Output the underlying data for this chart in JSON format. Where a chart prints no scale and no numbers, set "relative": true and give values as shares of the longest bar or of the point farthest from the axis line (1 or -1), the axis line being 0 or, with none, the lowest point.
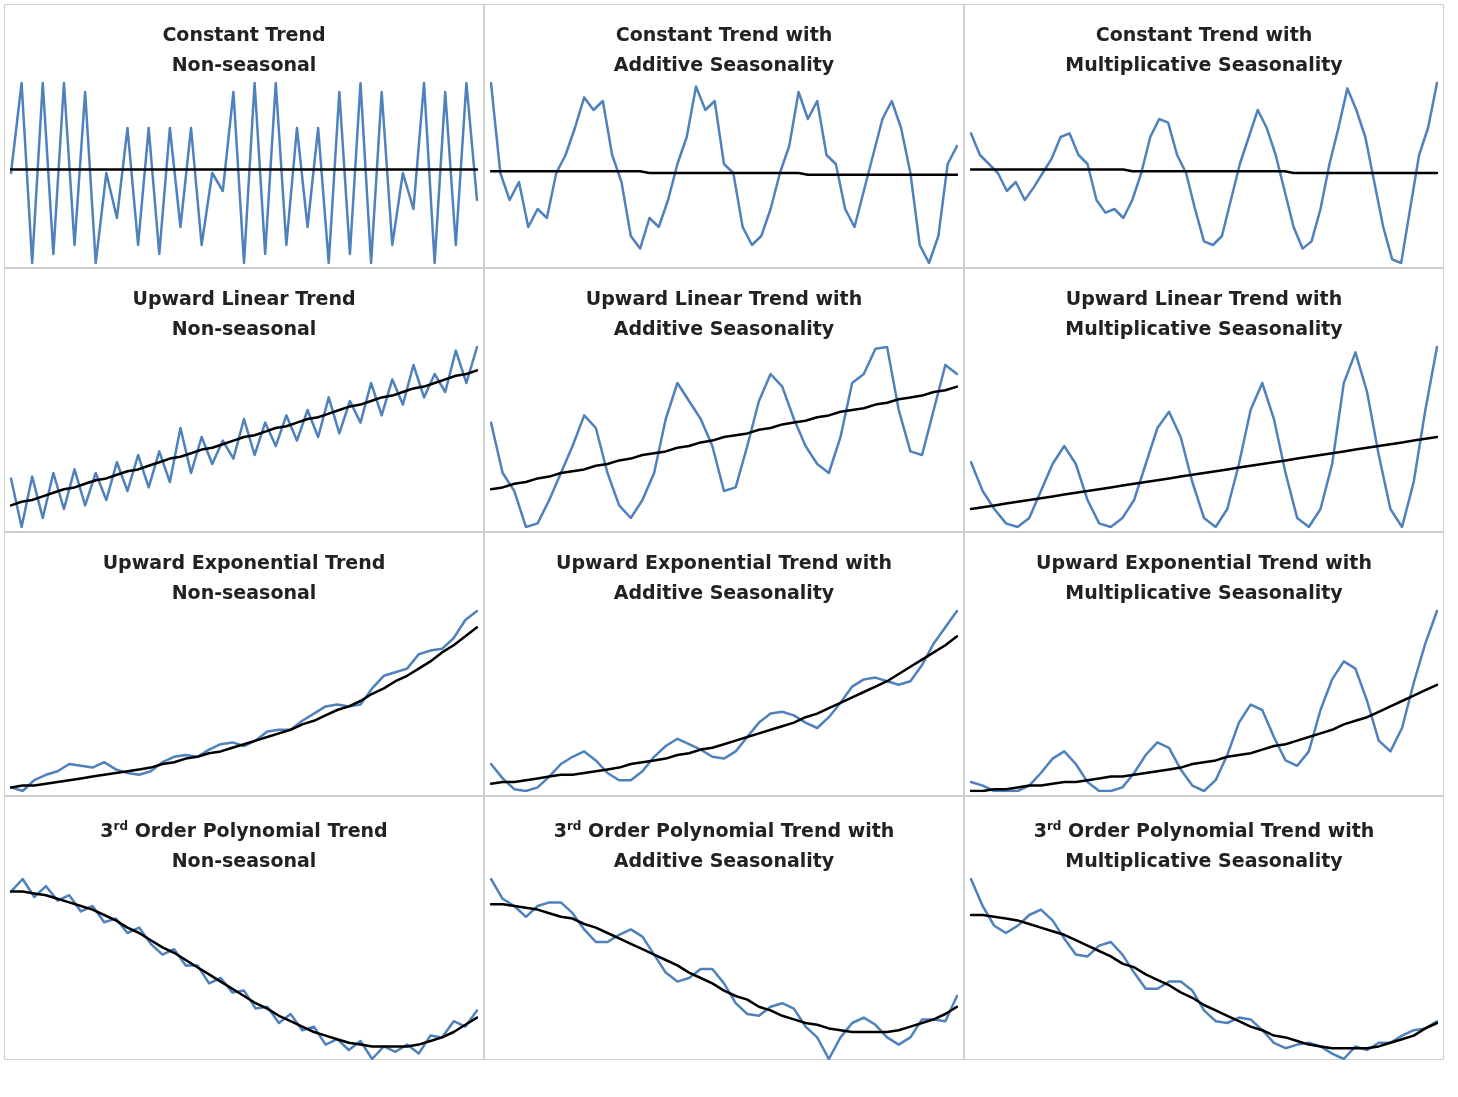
{
  "chart_data": [
    {
      "type": "line",
      "title": "Constant Trend",
      "subtitle": "Non-seasonal",
      "relative": true,
      "categories": [
        null,
        null,
        null,
        null,
        null,
        null,
        null,
        null,
        null,
        null,
        null,
        null,
        null,
        null,
        null,
        null,
        null,
        null,
        null,
        null,
        null,
        null,
        null,
        null,
        null,
        null,
        null,
        null,
        null,
        null,
        null,
        null,
        null,
        null,
        null,
        null,
        null,
        null,
        null,
        null,
        null,
        null,
        null,
        null,
        null
      ],
      "series": [
        {
          "color": "#4f81bd",
          "values": [
            0.5,
            1,
            0,
            1,
            0.05,
            1,
            0.1,
            0.95,
            0,
            0.5,
            0.25,
            0.75,
            0.1,
            0.75,
            0.05,
            0.75,
            0.2,
            0.75,
            0.1,
            0.5,
            0.4,
            0.95,
            0,
            1,
            0.05,
            1,
            0.1,
            0.75,
            0.2,
            0.75,
            0,
            0.95,
            0.05,
            1,
            0,
            0.95,
            0.1,
            0.5,
            0.3,
            1,
            0,
            0.95,
            0.1,
            1,
            0.35
          ]
        },
        {
          "color": "#000000",
          "values": [
            0.52,
            0.52,
            0.52,
            0.52,
            0.52,
            0.52,
            0.52,
            0.52,
            0.52,
            0.52,
            0.52,
            0.52,
            0.52,
            0.52,
            0.52,
            0.52,
            0.52,
            0.52,
            0.52,
            0.52,
            0.52,
            0.52,
            0.52,
            0.52,
            0.52,
            0.52,
            0.52,
            0.52,
            0.52,
            0.52,
            0.52,
            0.52,
            0.52,
            0.52,
            0.52,
            0.52,
            0.52,
            0.52,
            0.52,
            0.52,
            0.52,
            0.52,
            0.52,
            0.52,
            0.52
          ]
        }
      ]
    },
    {
      "type": "line",
      "title": "Constant Trend with",
      "subtitle": "Additive Seasonality",
      "relative": true,
      "categories": [
        null,
        null,
        null,
        null,
        null,
        null,
        null,
        null,
        null,
        null,
        null,
        null,
        null,
        null,
        null,
        null,
        null,
        null,
        null,
        null,
        null,
        null,
        null,
        null,
        null,
        null,
        null,
        null,
        null,
        null,
        null,
        null,
        null,
        null,
        null,
        null,
        null,
        null,
        null,
        null,
        null,
        null,
        null,
        null,
        null,
        null,
        null,
        null,
        null,
        null,
        null
      ],
      "series": [
        {
          "color": "#4f81bd",
          "values": [
            1.0,
            0.5,
            0.35,
            0.45,
            0.2,
            0.3,
            0.25,
            0.5,
            0.6,
            0.75,
            0.92,
            0.85,
            0.9,
            0.6,
            0.45,
            0.15,
            0.08,
            0.25,
            0.2,
            0.35,
            0.55,
            0.7,
            0.98,
            0.85,
            0.9,
            0.55,
            0.5,
            0.2,
            0.1,
            0.15,
            0.3,
            0.5,
            0.65,
            0.95,
            0.8,
            0.9,
            0.6,
            0.55,
            0.3,
            0.2,
            0.4,
            0.6,
            0.8,
            0.9,
            0.75,
            0.5,
            0.1,
            0.0,
            0.15,
            0.55,
            0.65
          ]
        },
        {
          "color": "#000000",
          "values": [
            0.51,
            0.51,
            0.51,
            0.51,
            0.51,
            0.51,
            0.51,
            0.51,
            0.51,
            0.51,
            0.51,
            0.51,
            0.51,
            0.51,
            0.51,
            0.51,
            0.51,
            0.5,
            0.5,
            0.5,
            0.5,
            0.5,
            0.5,
            0.5,
            0.5,
            0.5,
            0.5,
            0.5,
            0.5,
            0.5,
            0.5,
            0.5,
            0.5,
            0.5,
            0.49,
            0.49,
            0.49,
            0.49,
            0.49,
            0.49,
            0.49,
            0.49,
            0.49,
            0.49,
            0.49,
            0.49,
            0.49,
            0.49,
            0.49,
            0.49,
            0.49
          ]
        }
      ]
    },
    {
      "type": "line",
      "title": "Constant Trend with",
      "subtitle": "Multiplicative Seasonality",
      "relative": true,
      "categories": [
        null,
        null,
        null,
        null,
        null,
        null,
        null,
        null,
        null,
        null,
        null,
        null,
        null,
        null,
        null,
        null,
        null,
        null,
        null,
        null,
        null,
        null,
        null,
        null,
        null,
        null,
        null,
        null,
        null,
        null,
        null,
        null,
        null,
        null,
        null,
        null,
        null,
        null,
        null,
        null,
        null,
        null,
        null,
        null,
        null,
        null,
        null,
        null,
        null,
        null,
        null,
        null,
        null
      ],
      "series": [
        {
          "color": "#4f81bd",
          "values": [
            0.72,
            0.6,
            0.55,
            0.5,
            0.4,
            0.45,
            0.35,
            0.42,
            0.5,
            0.58,
            0.7,
            0.72,
            0.6,
            0.55,
            0.35,
            0.28,
            0.3,
            0.25,
            0.35,
            0.5,
            0.7,
            0.8,
            0.78,
            0.6,
            0.5,
            0.3,
            0.12,
            0.1,
            0.15,
            0.35,
            0.55,
            0.7,
            0.85,
            0.75,
            0.6,
            0.4,
            0.2,
            0.08,
            0.12,
            0.3,
            0.55,
            0.75,
            0.97,
            0.85,
            0.7,
            0.45,
            0.2,
            0.02,
            0.0,
            0.3,
            0.6,
            0.75,
            1.0
          ]
        },
        {
          "color": "#000000",
          "values": [
            0.52,
            0.52,
            0.52,
            0.52,
            0.52,
            0.52,
            0.52,
            0.52,
            0.52,
            0.52,
            0.52,
            0.52,
            0.52,
            0.52,
            0.52,
            0.52,
            0.52,
            0.52,
            0.51,
            0.51,
            0.51,
            0.51,
            0.51,
            0.51,
            0.51,
            0.51,
            0.51,
            0.51,
            0.51,
            0.51,
            0.51,
            0.51,
            0.51,
            0.51,
            0.51,
            0.51,
            0.5,
            0.5,
            0.5,
            0.5,
            0.5,
            0.5,
            0.5,
            0.5,
            0.5,
            0.5,
            0.5,
            0.5,
            0.5,
            0.5,
            0.5,
            0.5,
            0.5
          ]
        }
      ]
    },
    {
      "type": "line",
      "title": "Upward Linear Trend",
      "subtitle": "Non-seasonal",
      "relative": true,
      "categories": [
        null,
        null,
        null,
        null,
        null,
        null,
        null,
        null,
        null,
        null,
        null,
        null,
        null,
        null,
        null,
        null,
        null,
        null,
        null,
        null,
        null,
        null,
        null,
        null,
        null,
        null,
        null,
        null,
        null,
        null,
        null,
        null,
        null,
        null,
        null,
        null,
        null,
        null,
        null,
        null,
        null,
        null,
        null,
        null,
        null
      ],
      "series": [
        {
          "color": "#4f81bd",
          "values": [
            0.27,
            0.0,
            0.28,
            0.05,
            0.3,
            0.1,
            0.32,
            0.12,
            0.3,
            0.15,
            0.36,
            0.2,
            0.4,
            0.22,
            0.42,
            0.25,
            0.55,
            0.3,
            0.5,
            0.35,
            0.48,
            0.38,
            0.6,
            0.4,
            0.58,
            0.45,
            0.62,
            0.48,
            0.65,
            0.5,
            0.72,
            0.52,
            0.7,
            0.58,
            0.8,
            0.62,
            0.82,
            0.68,
            0.9,
            0.72,
            0.85,
            0.75,
            0.98,
            0.8,
            1.0
          ]
        },
        {
          "color": "#000000",
          "values": [
            0.12,
            0.14,
            0.15,
            0.17,
            0.19,
            0.21,
            0.22,
            0.24,
            0.26,
            0.27,
            0.29,
            0.31,
            0.32,
            0.34,
            0.36,
            0.38,
            0.39,
            0.41,
            0.43,
            0.44,
            0.46,
            0.48,
            0.5,
            0.51,
            0.53,
            0.55,
            0.56,
            0.58,
            0.6,
            0.61,
            0.63,
            0.65,
            0.67,
            0.68,
            0.7,
            0.72,
            0.73,
            0.75,
            0.77,
            0.78,
            0.8,
            0.82,
            0.84,
            0.85,
            0.87
          ]
        }
      ]
    },
    {
      "type": "line",
      "title": "Upward Linear Trend with",
      "subtitle": "Additive Seasonality",
      "relative": true,
      "categories": [
        null,
        null,
        null,
        null,
        null,
        null,
        null,
        null,
        null,
        null,
        null,
        null,
        null,
        null,
        null,
        null,
        null,
        null,
        null,
        null,
        null,
        null,
        null,
        null,
        null,
        null,
        null,
        null,
        null,
        null,
        null,
        null,
        null,
        null,
        null,
        null,
        null,
        null,
        null,
        null,
        null
      ],
      "series": [
        {
          "color": "#4f81bd",
          "values": [
            0.58,
            0.3,
            0.2,
            0.0,
            0.02,
            0.15,
            0.3,
            0.45,
            0.62,
            0.55,
            0.3,
            0.12,
            0.05,
            0.15,
            0.3,
            0.6,
            0.8,
            0.7,
            0.6,
            0.45,
            0.2,
            0.22,
            0.45,
            0.7,
            0.85,
            0.78,
            0.6,
            0.45,
            0.35,
            0.3,
            0.5,
            0.8,
            0.85,
            0.99,
            1.0,
            0.65,
            0.42,
            0.4,
            0.65,
            0.9,
            0.85
          ]
        },
        {
          "color": "#000000",
          "values": [
            0.21,
            0.22,
            0.24,
            0.25,
            0.27,
            0.28,
            0.3,
            0.31,
            0.32,
            0.34,
            0.35,
            0.37,
            0.38,
            0.4,
            0.41,
            0.42,
            0.44,
            0.45,
            0.47,
            0.48,
            0.5,
            0.51,
            0.52,
            0.54,
            0.55,
            0.57,
            0.58,
            0.59,
            0.61,
            0.62,
            0.64,
            0.65,
            0.66,
            0.68,
            0.69,
            0.71,
            0.72,
            0.73,
            0.75,
            0.76,
            0.78
          ]
        }
      ]
    },
    {
      "type": "line",
      "title": "Upward Linear Trend with",
      "subtitle": "Multiplicative Seasonality",
      "relative": true,
      "categories": [
        null,
        null,
        null,
        null,
        null,
        null,
        null,
        null,
        null,
        null,
        null,
        null,
        null,
        null,
        null,
        null,
        null,
        null,
        null,
        null,
        null,
        null,
        null,
        null,
        null,
        null,
        null,
        null,
        null,
        null,
        null,
        null,
        null,
        null,
        null,
        null,
        null,
        null,
        null,
        null,
        null
      ],
      "series": [
        {
          "color": "#4f81bd",
          "values": [
            0.36,
            0.2,
            0.1,
            0.02,
            0.0,
            0.05,
            0.2,
            0.35,
            0.45,
            0.35,
            0.15,
            0.02,
            0.0,
            0.05,
            0.15,
            0.35,
            0.55,
            0.64,
            0.5,
            0.25,
            0.05,
            0.0,
            0.1,
            0.35,
            0.65,
            0.8,
            0.6,
            0.3,
            0.05,
            0.0,
            0.1,
            0.35,
            0.8,
            0.97,
            0.75,
            0.4,
            0.1,
            0.0,
            0.25,
            0.65,
            1.0
          ]
        },
        {
          "color": "#000000",
          "values": [
            0.1,
            0.11,
            0.12,
            0.13,
            0.14,
            0.15,
            0.16,
            0.17,
            0.18,
            0.19,
            0.2,
            0.21,
            0.22,
            0.23,
            0.24,
            0.25,
            0.26,
            0.27,
            0.28,
            0.29,
            0.3,
            0.31,
            0.32,
            0.33,
            0.34,
            0.35,
            0.36,
            0.37,
            0.38,
            0.39,
            0.4,
            0.41,
            0.42,
            0.43,
            0.44,
            0.45,
            0.46,
            0.47,
            0.48,
            0.49,
            0.5
          ]
        }
      ]
    },
    {
      "type": "line",
      "title": "Upward Exponential Trend",
      "subtitle": "Non-seasonal",
      "relative": true,
      "categories": [
        null,
        null,
        null,
        null,
        null,
        null,
        null,
        null,
        null,
        null,
        null,
        null,
        null,
        null,
        null,
        null,
        null,
        null,
        null,
        null,
        null,
        null,
        null,
        null,
        null,
        null,
        null,
        null,
        null,
        null,
        null,
        null,
        null,
        null,
        null,
        null,
        null,
        null,
        null,
        null,
        null
      ],
      "series": [
        {
          "color": "#4f81bd",
          "values": [
            0.02,
            0.0,
            0.06,
            0.09,
            0.11,
            0.15,
            0.14,
            0.13,
            0.16,
            0.12,
            0.1,
            0.09,
            0.11,
            0.16,
            0.19,
            0.2,
            0.19,
            0.23,
            0.26,
            0.27,
            0.25,
            0.28,
            0.33,
            0.34,
            0.34,
            0.39,
            0.43,
            0.47,
            0.48,
            0.47,
            0.48,
            0.57,
            0.64,
            0.66,
            0.68,
            0.76,
            0.78,
            0.79,
            0.85,
            0.95,
            1.0
          ]
        },
        {
          "color": "#000000",
          "values": [
            0.02,
            0.03,
            0.03,
            0.04,
            0.05,
            0.06,
            0.07,
            0.08,
            0.09,
            0.1,
            0.11,
            0.12,
            0.13,
            0.15,
            0.16,
            0.18,
            0.19,
            0.21,
            0.22,
            0.24,
            0.26,
            0.28,
            0.3,
            0.32,
            0.34,
            0.37,
            0.39,
            0.42,
            0.45,
            0.47,
            0.5,
            0.54,
            0.57,
            0.61,
            0.64,
            0.68,
            0.72,
            0.77,
            0.81,
            0.86,
            0.91
          ]
        }
      ]
    },
    {
      "type": "line",
      "title": "Upward Exponential Trend with",
      "subtitle": "Additive Seasonality",
      "relative": true,
      "categories": [
        null,
        null,
        null,
        null,
        null,
        null,
        null,
        null,
        null,
        null,
        null,
        null,
        null,
        null,
        null,
        null,
        null,
        null,
        null,
        null,
        null,
        null,
        null,
        null,
        null,
        null,
        null,
        null,
        null,
        null,
        null,
        null,
        null,
        null,
        null,
        null,
        null,
        null,
        null,
        null,
        null
      ],
      "series": [
        {
          "color": "#4f81bd",
          "values": [
            0.15,
            0.07,
            0.01,
            0.0,
            0.02,
            0.08,
            0.15,
            0.19,
            0.22,
            0.17,
            0.1,
            0.06,
            0.06,
            0.11,
            0.19,
            0.25,
            0.29,
            0.26,
            0.23,
            0.19,
            0.18,
            0.22,
            0.3,
            0.38,
            0.43,
            0.44,
            0.42,
            0.38,
            0.35,
            0.41,
            0.49,
            0.58,
            0.62,
            0.63,
            0.61,
            0.59,
            0.61,
            0.7,
            0.82,
            0.91,
            1.0
          ]
        },
        {
          "color": "#000000",
          "values": [
            0.04,
            0.05,
            0.05,
            0.06,
            0.07,
            0.08,
            0.09,
            0.09,
            0.1,
            0.11,
            0.12,
            0.13,
            0.15,
            0.16,
            0.17,
            0.18,
            0.2,
            0.21,
            0.23,
            0.24,
            0.26,
            0.28,
            0.3,
            0.32,
            0.34,
            0.36,
            0.38,
            0.41,
            0.43,
            0.46,
            0.49,
            0.52,
            0.55,
            0.58,
            0.61,
            0.65,
            0.69,
            0.73,
            0.77,
            0.81,
            0.86
          ]
        }
      ]
    },
    {
      "type": "line",
      "title": "Upward Exponential Trend with",
      "subtitle": "Multiplicative Seasonality",
      "relative": true,
      "categories": [
        null,
        null,
        null,
        null,
        null,
        null,
        null,
        null,
        null,
        null,
        null,
        null,
        null,
        null,
        null,
        null,
        null,
        null,
        null,
        null,
        null,
        null,
        null,
        null,
        null,
        null,
        null,
        null,
        null,
        null,
        null,
        null,
        null,
        null,
        null,
        null,
        null,
        null,
        null,
        null,
        null
      ],
      "series": [
        {
          "color": "#4f81bd",
          "values": [
            0.05,
            0.03,
            0.0,
            0.0,
            0.0,
            0.03,
            0.1,
            0.18,
            0.22,
            0.15,
            0.05,
            0.0,
            0.0,
            0.02,
            0.1,
            0.2,
            0.27,
            0.24,
            0.12,
            0.03,
            0.0,
            0.06,
            0.2,
            0.38,
            0.48,
            0.45,
            0.3,
            0.17,
            0.14,
            0.22,
            0.45,
            0.62,
            0.72,
            0.68,
            0.5,
            0.28,
            0.22,
            0.35,
            0.6,
            0.82,
            1.0
          ]
        },
        {
          "color": "#000000",
          "values": [
            0.0,
            0.0,
            0.01,
            0.01,
            0.02,
            0.03,
            0.03,
            0.04,
            0.05,
            0.05,
            0.06,
            0.07,
            0.08,
            0.08,
            0.09,
            0.1,
            0.11,
            0.12,
            0.13,
            0.15,
            0.16,
            0.17,
            0.19,
            0.2,
            0.21,
            0.23,
            0.25,
            0.26,
            0.28,
            0.3,
            0.32,
            0.34,
            0.37,
            0.39,
            0.41,
            0.44,
            0.47,
            0.5,
            0.53,
            0.56,
            0.59
          ]
        }
      ]
    },
    {
      "type": "line",
      "title": "3$^{rd}$ Order Polynomial Trend",
      "subtitle": "Non-seasonal",
      "relative": true,
      "categories": [
        null,
        null,
        null,
        null,
        null,
        null,
        null,
        null,
        null,
        null,
        null,
        null,
        null,
        null,
        null,
        null,
        null,
        null,
        null,
        null,
        null,
        null,
        null,
        null,
        null,
        null,
        null,
        null,
        null,
        null,
        null,
        null,
        null,
        null,
        null,
        null,
        null,
        null,
        null,
        null,
        null
      ],
      "series": [
        {
          "color": "#4f81bd",
          "values": [
            0.93,
            1.0,
            0.9,
            0.96,
            0.88,
            0.91,
            0.82,
            0.85,
            0.76,
            0.78,
            0.7,
            0.73,
            0.64,
            0.58,
            0.61,
            0.52,
            0.52,
            0.42,
            0.45,
            0.37,
            0.38,
            0.28,
            0.29,
            0.2,
            0.25,
            0.16,
            0.18,
            0.08,
            0.11,
            0.05,
            0.1,
            0.0,
            0.07,
            0.04,
            0.08,
            0.03,
            0.13,
            0.12,
            0.21,
            0.18,
            0.27
          ]
        },
        {
          "color": "#000000",
          "values": [
            0.93,
            0.93,
            0.92,
            0.91,
            0.89,
            0.87,
            0.85,
            0.83,
            0.8,
            0.77,
            0.73,
            0.7,
            0.66,
            0.62,
            0.59,
            0.55,
            0.51,
            0.47,
            0.43,
            0.39,
            0.35,
            0.31,
            0.28,
            0.24,
            0.21,
            0.18,
            0.15,
            0.13,
            0.11,
            0.09,
            0.08,
            0.07,
            0.07,
            0.07,
            0.07,
            0.08,
            0.1,
            0.12,
            0.15,
            0.19,
            0.23
          ]
        }
      ]
    },
    {
      "type": "line",
      "title": "3$^{rd}$ Order Polynomial Trend with",
      "subtitle": "Additive Seasonality",
      "relative": true,
      "categories": [
        null,
        null,
        null,
        null,
        null,
        null,
        null,
        null,
        null,
        null,
        null,
        null,
        null,
        null,
        null,
        null,
        null,
        null,
        null,
        null,
        null,
        null,
        null,
        null,
        null,
        null,
        null,
        null,
        null,
        null,
        null,
        null,
        null,
        null,
        null,
        null,
        null,
        null,
        null,
        null,
        null
      ],
      "series": [
        {
          "color": "#4f81bd",
          "values": [
            1.0,
            0.89,
            0.85,
            0.79,
            0.85,
            0.87,
            0.87,
            0.81,
            0.72,
            0.65,
            0.65,
            0.69,
            0.72,
            0.68,
            0.58,
            0.48,
            0.43,
            0.45,
            0.5,
            0.5,
            0.42,
            0.31,
            0.25,
            0.24,
            0.29,
            0.31,
            0.28,
            0.18,
            0.12,
            0.0,
            0.12,
            0.2,
            0.23,
            0.19,
            0.12,
            0.08,
            0.12,
            0.22,
            0.22,
            0.21,
            0.35
          ]
        },
        {
          "color": "#000000",
          "values": [
            0.86,
            0.86,
            0.85,
            0.84,
            0.83,
            0.81,
            0.79,
            0.78,
            0.75,
            0.73,
            0.7,
            0.67,
            0.64,
            0.61,
            0.58,
            0.55,
            0.52,
            0.48,
            0.45,
            0.42,
            0.38,
            0.35,
            0.33,
            0.29,
            0.27,
            0.24,
            0.22,
            0.2,
            0.19,
            0.17,
            0.16,
            0.15,
            0.15,
            0.15,
            0.15,
            0.16,
            0.18,
            0.2,
            0.22,
            0.25,
            0.29
          ]
        }
      ]
    },
    {
      "type": "line",
      "title": "3$^{rd}$ Order Polynomial Trend with",
      "subtitle": "Multiplicative Seasonality",
      "relative": true,
      "categories": [
        null,
        null,
        null,
        null,
        null,
        null,
        null,
        null,
        null,
        null,
        null,
        null,
        null,
        null,
        null,
        null,
        null,
        null,
        null,
        null,
        null,
        null,
        null,
        null,
        null,
        null,
        null,
        null,
        null,
        null,
        null,
        null,
        null,
        null,
        null,
        null,
        null,
        null,
        null,
        null,
        null
      ],
      "series": [
        {
          "color": "#4f81bd",
          "values": [
            1.0,
            0.85,
            0.74,
            0.7,
            0.74,
            0.8,
            0.83,
            0.77,
            0.67,
            0.58,
            0.57,
            0.63,
            0.65,
            0.58,
            0.48,
            0.39,
            0.39,
            0.43,
            0.43,
            0.38,
            0.27,
            0.21,
            0.2,
            0.23,
            0.22,
            0.16,
            0.09,
            0.06,
            0.08,
            0.09,
            0.07,
            0.03,
            0.0,
            0.07,
            0.05,
            0.09,
            0.09,
            0.13,
            0.16,
            0.17,
            0.21
          ]
        },
        {
          "color": "#000000",
          "values": [
            0.8,
            0.8,
            0.79,
            0.78,
            0.77,
            0.75,
            0.73,
            0.71,
            0.69,
            0.66,
            0.63,
            0.6,
            0.57,
            0.53,
            0.51,
            0.47,
            0.44,
            0.41,
            0.37,
            0.34,
            0.3,
            0.27,
            0.24,
            0.21,
            0.18,
            0.16,
            0.13,
            0.12,
            0.1,
            0.08,
            0.07,
            0.06,
            0.06,
            0.06,
            0.06,
            0.07,
            0.09,
            0.11,
            0.13,
            0.17,
            0.2
          ]
        }
      ]
    }
  ]
}
